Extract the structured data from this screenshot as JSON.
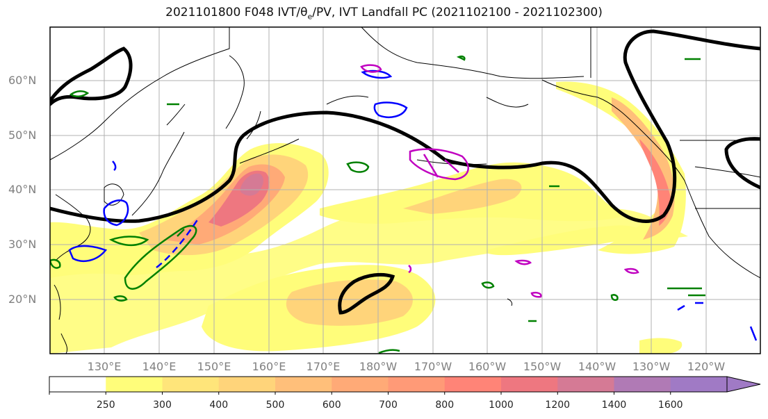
{
  "title": "2021101800 F048 IVT/θe/PV, IVT Landfall PC (2021102100 - 2021102300)",
  "title_parts": {
    "prefix": "2021101800 F048 IVT/",
    "theta": "θ",
    "sub": "e",
    "suffix": "/PV, IVT Landfall PC (2021102100 - 2021102300)"
  },
  "lat_labels": [
    "60°N",
    "50°N",
    "40°N",
    "30°N",
    "20°N"
  ],
  "lon_labels": [
    "130°E",
    "140°E",
    "150°E",
    "160°E",
    "170°E",
    "180°W",
    "170°W",
    "160°W",
    "150°W",
    "140°W",
    "130°W",
    "120°W"
  ],
  "colorbar": {
    "ticks": [
      "250",
      "300",
      "400",
      "500",
      "600",
      "700",
      "800",
      "1000",
      "1200",
      "1400",
      "1600"
    ],
    "colors": [
      "#ffffff",
      "#fffd7a",
      "#ffe57a",
      "#ffd47a",
      "#ffbf7a",
      "#ffaa77",
      "#ff9a77",
      "#ff8477",
      "#ee7780",
      "#d57a95",
      "#b07ab5",
      "#a07ac5"
    ]
  },
  "legend_colors": {
    "land_outline": "#000000",
    "pv_thick_contour": "#000000",
    "theta_e_green": "#008000",
    "pv_blue": "#0000ff",
    "landfall_pc_magenta": "#c000c0"
  },
  "ivt_levels": [
    250,
    300,
    400,
    500,
    600,
    700,
    800,
    1000,
    1200,
    1400,
    1600
  ]
}
